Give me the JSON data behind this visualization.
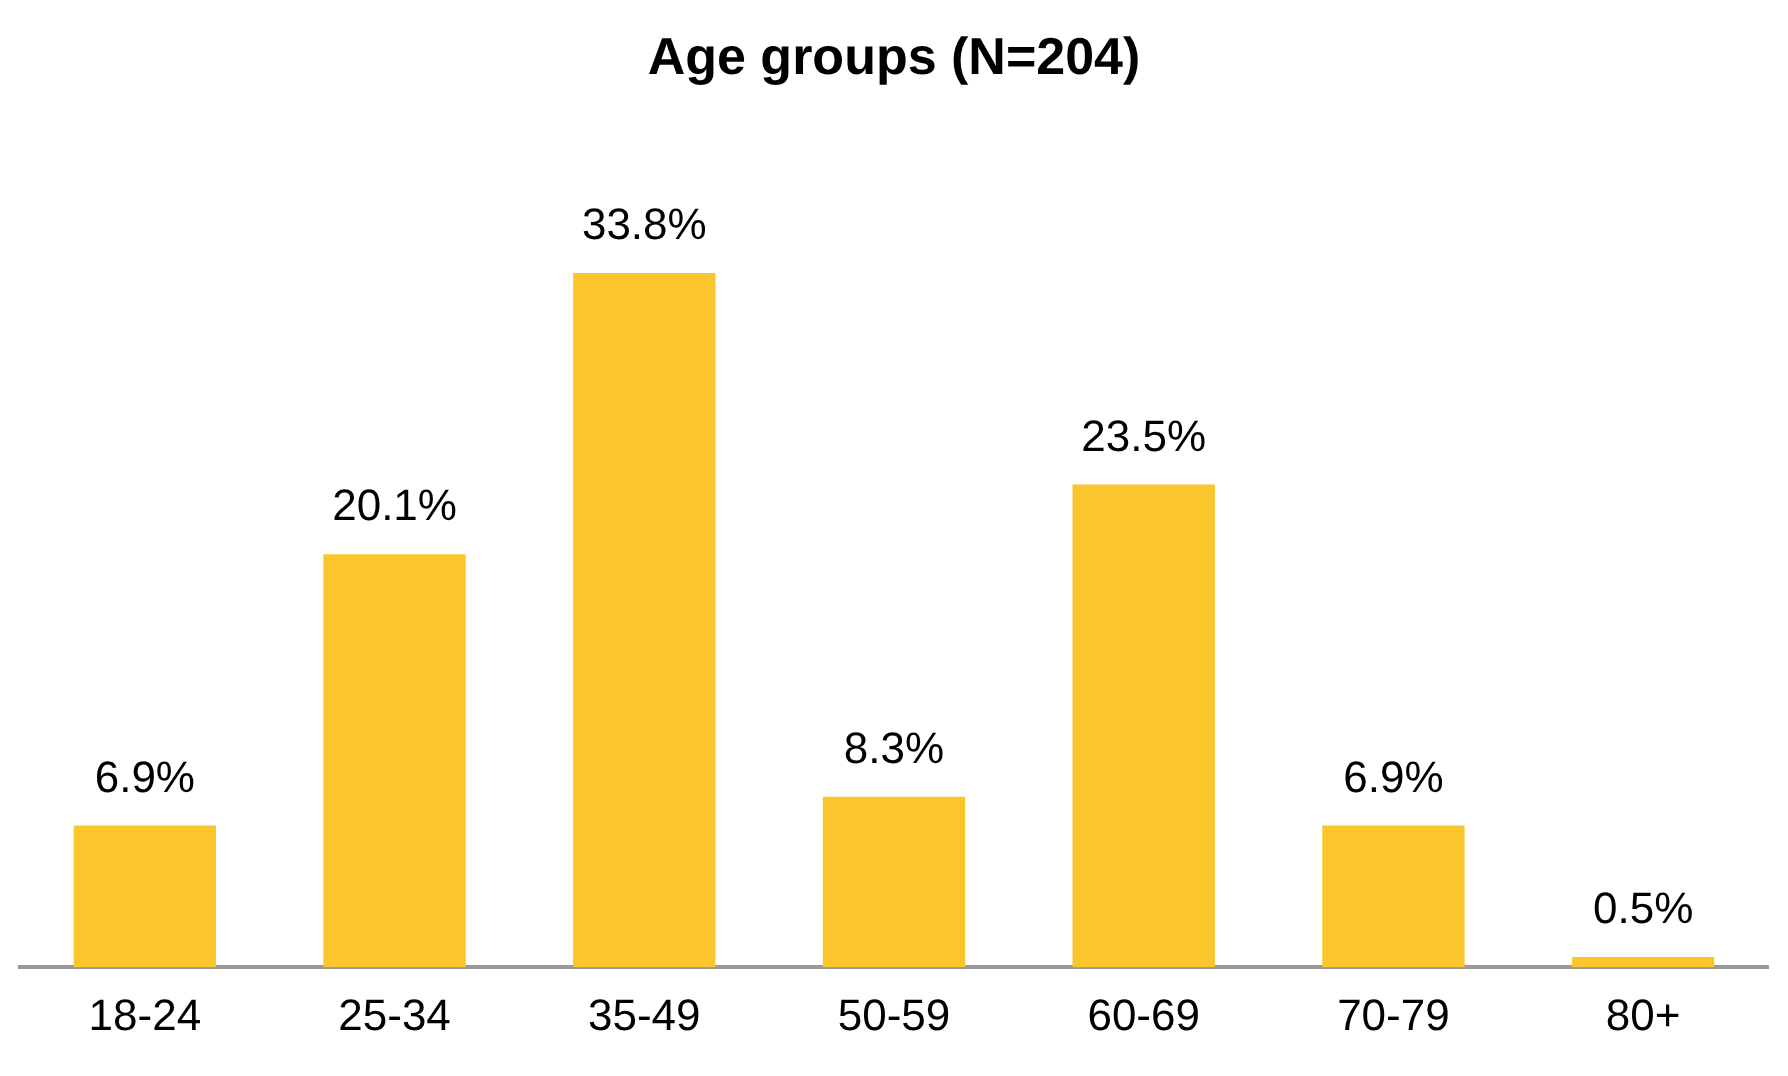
{
  "chart_data": {
    "type": "bar",
    "title": "Age groups (N=204)",
    "categories": [
      "18-24",
      "25-34",
      "35-49",
      "50-59",
      "60-69",
      "70-79",
      "80+"
    ],
    "values": [
      6.9,
      20.1,
      33.8,
      8.3,
      23.5,
      6.9,
      0.5
    ],
    "value_labels": [
      "6.9%",
      "20.1%",
      "33.8%",
      "8.3%",
      "23.5%",
      "6.9%",
      "0.5%"
    ],
    "color": "#fbc52d",
    "grid": false,
    "legend": false,
    "tick_labels": "x"
  }
}
